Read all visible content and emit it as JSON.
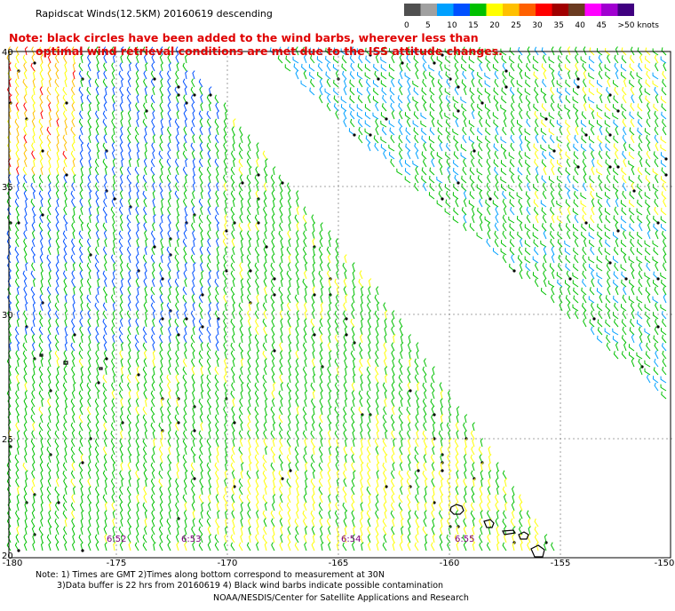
{
  "title": "Rapidscat Winds(12.5KM) 20160619 descending",
  "note": {
    "line1": "Note: black circles have been added to the wind barbs, wherever less than",
    "line2": "optimal wind retrieval conditions are met due to the ISS attitude changes."
  },
  "colorbar": {
    "labels": [
      "0",
      "5",
      "10",
      "15",
      "20",
      "25",
      "30",
      "35",
      "40",
      "45",
      ">50 knots"
    ],
    "colors": [
      "#505050",
      "#a0a0a0",
      "#00a0ff",
      "#0050ff",
      "#00c000",
      "#ffff00",
      "#ffc000",
      "#ff6000",
      "#ff0000",
      "#a00000",
      "#6a3a20",
      "#ff00ff",
      "#a000d0",
      "#400080"
    ]
  },
  "axes": {
    "lat_labels": [
      "40",
      "35",
      "30",
      "25",
      "20"
    ],
    "lon_labels": [
      "-180",
      "-175",
      "-170",
      "-165",
      "-160",
      "-155",
      "-150"
    ]
  },
  "time_labels": [
    "6:52",
    "6:53",
    "6:54",
    "6:55"
  ],
  "footer": {
    "line1": "Note: 1) Times are GMT 2)Times along bottom correspond to measurement at 30N",
    "line2": "3)Data buffer is 22 hrs from 20160619 4) Black wind barbs indicate possible contamination",
    "line3": "NOAA/NESDIS/Center for Satellite Applications and Research"
  }
}
